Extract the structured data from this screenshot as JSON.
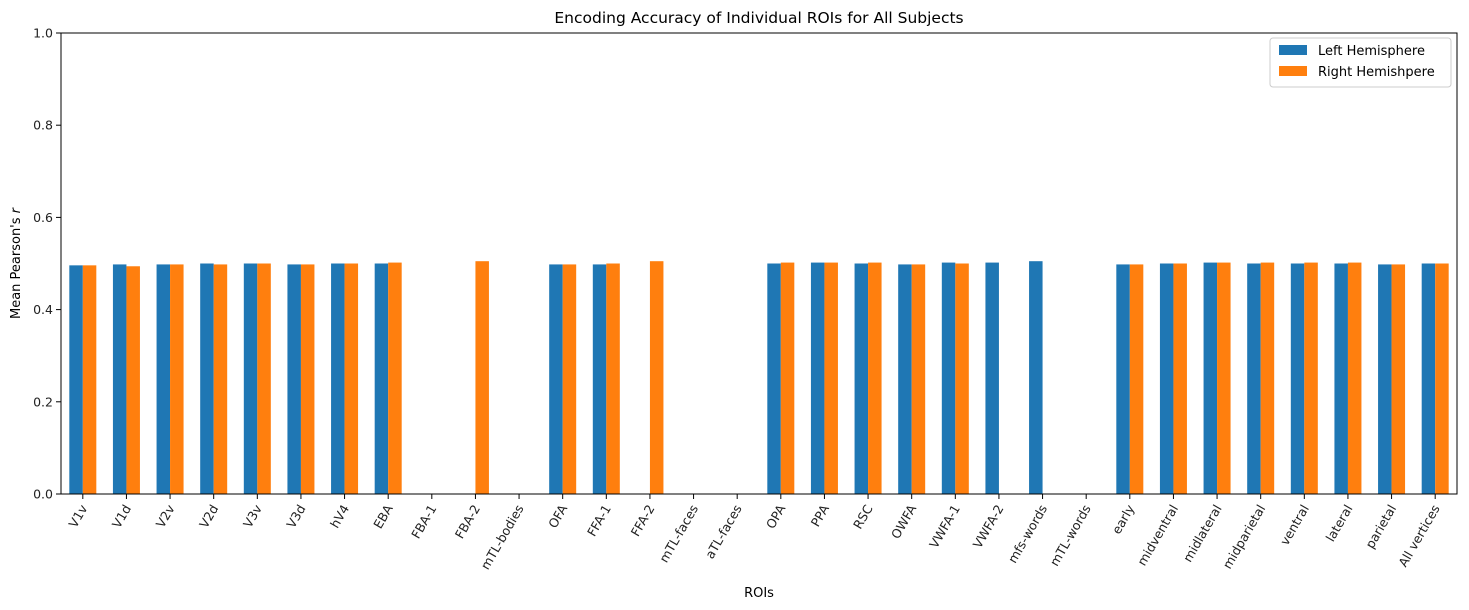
{
  "chart_data": {
    "type": "bar",
    "title": "Encoding Accuracy of Individual ROIs for All Subjects",
    "xlabel": "ROIs",
    "ylabel": "Mean Pearson's r",
    "ylim": [
      0,
      1.0
    ],
    "yticks": [
      "0.0",
      "0.2",
      "0.4",
      "0.6",
      "0.8",
      "1.0"
    ],
    "legend_position": "top-right",
    "grid": false,
    "categories": [
      "V1v",
      "V1d",
      "V2v",
      "V2d",
      "V3v",
      "V3d",
      "hV4",
      "EBA",
      "FBA-1",
      "FBA-2",
      "mTL-bodies",
      "OFA",
      "FFA-1",
      "FFA-2",
      "mTL-faces",
      "aTL-faces",
      "OPA",
      "PPA",
      "RSC",
      "OWFA",
      "VWFA-1",
      "VWFA-2",
      "mfs-words",
      "mTL-words",
      "early",
      "midventral",
      "midlateral",
      "midparietal",
      "ventral",
      "lateral",
      "parietal",
      "All vertices"
    ],
    "series": [
      {
        "name": "Left Hemisphere",
        "color": "#1f77b4",
        "values": [
          0.496,
          0.498,
          0.498,
          0.5,
          0.5,
          0.498,
          0.5,
          0.5,
          null,
          null,
          null,
          0.498,
          0.498,
          null,
          null,
          null,
          0.5,
          0.502,
          0.5,
          0.498,
          0.502,
          0.502,
          0.505,
          null,
          0.498,
          0.5,
          0.502,
          0.5,
          0.5,
          0.5,
          0.498,
          0.5
        ]
      },
      {
        "name": "Right Hemishpere",
        "color": "#ff7f0e",
        "values": [
          0.496,
          0.494,
          0.498,
          0.498,
          0.5,
          0.498,
          0.5,
          0.502,
          null,
          0.505,
          null,
          0.498,
          0.5,
          0.505,
          null,
          null,
          0.502,
          0.502,
          0.502,
          0.498,
          0.5,
          null,
          null,
          null,
          0.498,
          0.5,
          0.502,
          0.502,
          0.502,
          0.502,
          0.498,
          0.5
        ]
      }
    ]
  }
}
